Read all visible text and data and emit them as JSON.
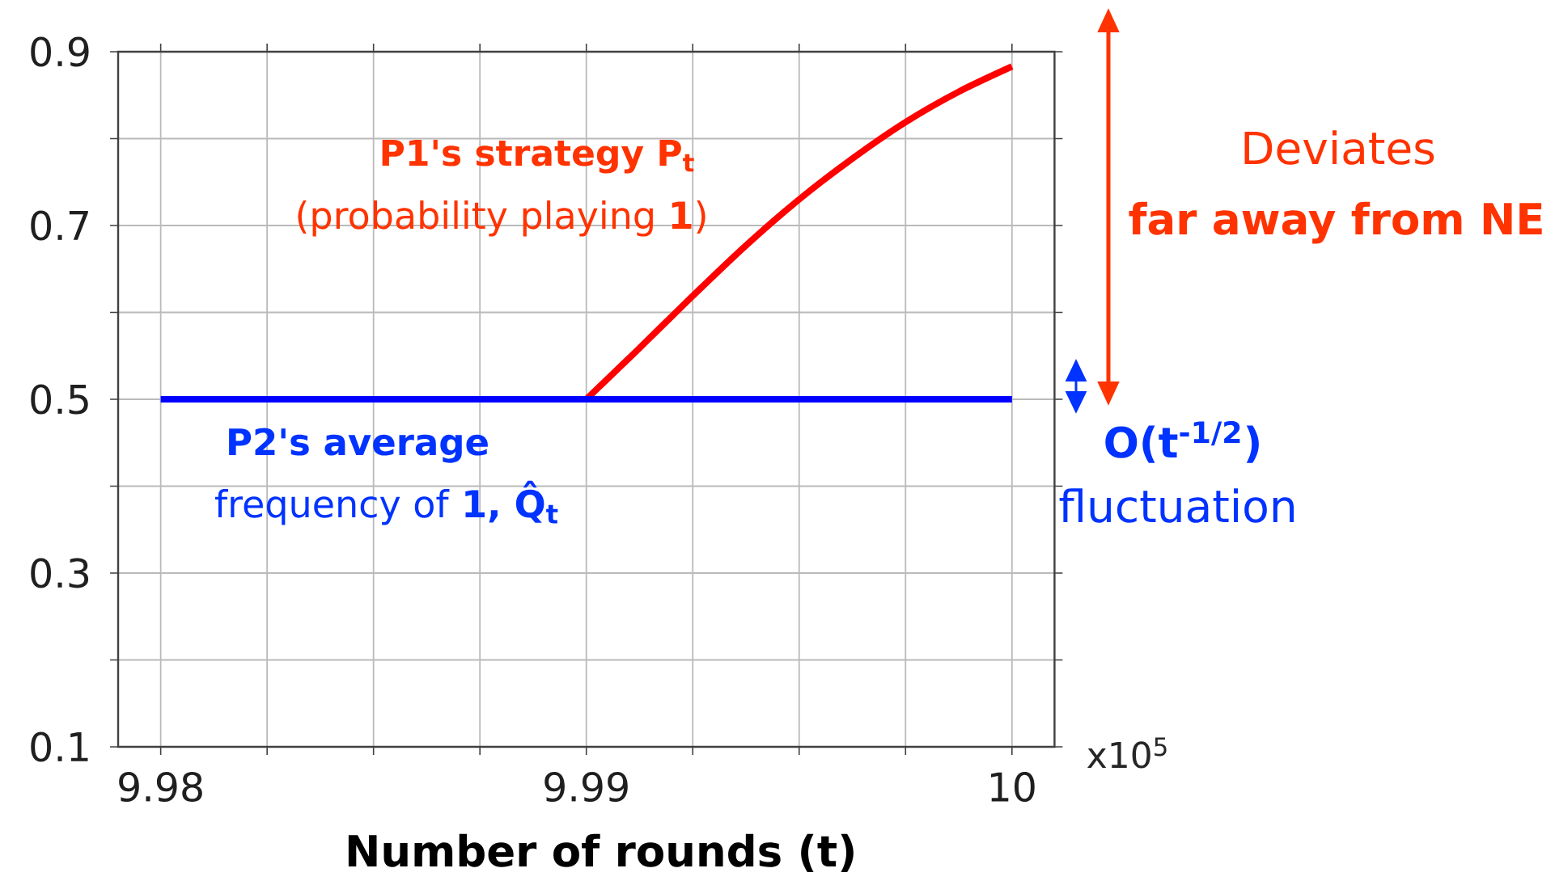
{
  "chart_data": {
    "type": "line",
    "xlabel": "Number of rounds (t)",
    "series": [
      {
        "color": "#ff0000",
        "x": [
          9.99,
          9.99125,
          9.9925,
          9.99375,
          9.995,
          9.99625,
          9.9975,
          9.99875,
          10
        ],
        "values": [
          0.5,
          0.559,
          0.619,
          0.677,
          0.73,
          0.777,
          0.819,
          0.854,
          0.883
        ]
      },
      {
        "color": "#0000ff",
        "x": [
          9.98,
          10
        ],
        "values": [
          0.5,
          0.5
        ]
      }
    ],
    "xlim": [
      9.979,
      10.001
    ],
    "ylim": [
      0.1,
      0.9
    ],
    "xticks": [
      9.98,
      {
        "value": 9.9825,
        "label": null
      },
      {
        "value": 9.985,
        "label": null
      },
      {
        "value": 9.9875,
        "label": null
      },
      9.99,
      {
        "value": 9.9925,
        "label": null
      },
      {
        "value": 9.995,
        "label": null
      },
      {
        "value": 9.9975,
        "label": null
      },
      10
    ],
    "yticks": [
      0.1,
      {
        "value": 0.2,
        "label": null
      },
      0.3,
      {
        "value": 0.4,
        "label": null
      },
      0.5,
      {
        "value": 0.6,
        "label": null
      },
      0.7,
      {
        "value": 0.8,
        "label": null
      },
      0.9
    ],
    "grid": true,
    "annotations": [
      "P1's strategy P$_{t}$",
      "(probability playing **1**)",
      "P2's average",
      "frequency of **1, Q̂$_{t}$**",
      "Deviates",
      "far away from NE",
      "O(t$^{-1/2}$)",
      "fluctuation",
      "x10$^{5}$"
    ]
  }
}
